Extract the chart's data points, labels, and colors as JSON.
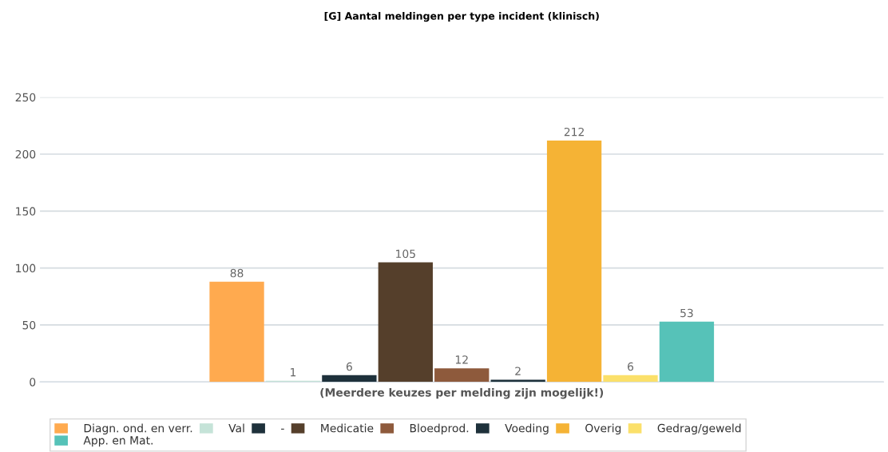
{
  "chart_data": {
    "type": "bar",
    "title": "[G] Aantal meldingen per type incident (klinisch)",
    "xlabel": "(Meerdere keuzes per melding zijn mogelijk!)",
    "categories": [
      null
    ],
    "series": [
      {
        "name": "Diagn. ond. en verr.",
        "color": "#ffaa4f",
        "values": [
          88
        ]
      },
      {
        "name": "Val",
        "color": "#c5e3d8",
        "values": [
          1
        ]
      },
      {
        "name": "-",
        "color": "#1e313b",
        "values": [
          6
        ]
      },
      {
        "name": "Medicatie",
        "color": "#553f2b",
        "values": [
          105
        ]
      },
      {
        "name": "Bloedprod.",
        "color": "#8e5a3c",
        "values": [
          12
        ]
      },
      {
        "name": "Voeding",
        "color": "#1e313b",
        "values": [
          2
        ]
      },
      {
        "name": "Overig",
        "color": "#f5b335",
        "values": [
          212
        ]
      },
      {
        "name": "Gedrag/geweld",
        "color": "#fbe06a",
        "values": [
          6
        ]
      },
      {
        "name": "App. en Mat.",
        "color": "#56c2b8",
        "values": [
          53
        ]
      }
    ],
    "ylim": [
      0,
      250
    ],
    "yticks": [
      0,
      50,
      100,
      150,
      200,
      250
    ],
    "grid": "y",
    "legend": "bottom",
    "data_labels": true
  }
}
